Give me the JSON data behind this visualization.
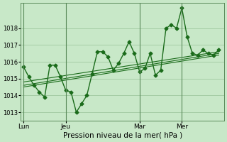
{
  "title": "",
  "xlabel": "Pression niveau de la mer( hPa )",
  "ylabel": "",
  "bg_color": "#c8e8c8",
  "grid_color": "#a0c8a0",
  "line_color": "#1a6b1a",
  "marker_color": "#1a6b1a",
  "ylim": [
    1012.5,
    1019.5
  ],
  "yticks": [
    1013,
    1014,
    1015,
    1016,
    1017,
    1018
  ],
  "xtick_labels": [
    "Lun",
    "Jeu",
    "Mar",
    "Mer"
  ],
  "xtick_positions": [
    0,
    8,
    22,
    30
  ],
  "vline_positions": [
    0,
    8,
    22,
    30
  ],
  "xlim": [
    -0.5,
    38
  ],
  "series0_x": [
    0,
    1,
    2,
    3,
    4,
    5,
    6,
    7,
    8,
    9,
    10,
    11,
    12,
    13,
    14,
    15,
    16,
    17,
    18,
    19,
    20,
    21,
    22,
    23,
    24,
    25,
    26,
    27,
    28,
    29,
    30,
    31,
    32,
    33,
    34,
    35,
    36,
    37
  ],
  "series0_y": [
    1015.7,
    1015.1,
    1014.6,
    1014.2,
    1013.9,
    1015.8,
    1015.8,
    1015.1,
    1014.3,
    1014.2,
    1013.0,
    1013.5,
    1014.0,
    1015.3,
    1016.6,
    1016.6,
    1016.3,
    1015.5,
    1015.9,
    1016.5,
    1017.2,
    1016.5,
    1015.4,
    1015.6,
    1016.5,
    1015.2,
    1015.5,
    1018.0,
    1018.2,
    1018.0,
    1019.2,
    1017.5,
    1016.5,
    1016.4,
    1016.7,
    1016.5,
    1016.4,
    1016.7
  ],
  "trend1_x": [
    0,
    37
  ],
  "trend1_y": [
    1014.8,
    1016.6
  ],
  "trend2_x": [
    0,
    37
  ],
  "trend2_y": [
    1014.6,
    1016.5
  ],
  "trend3_x": [
    0,
    37
  ],
  "trend3_y": [
    1014.5,
    1016.4
  ]
}
